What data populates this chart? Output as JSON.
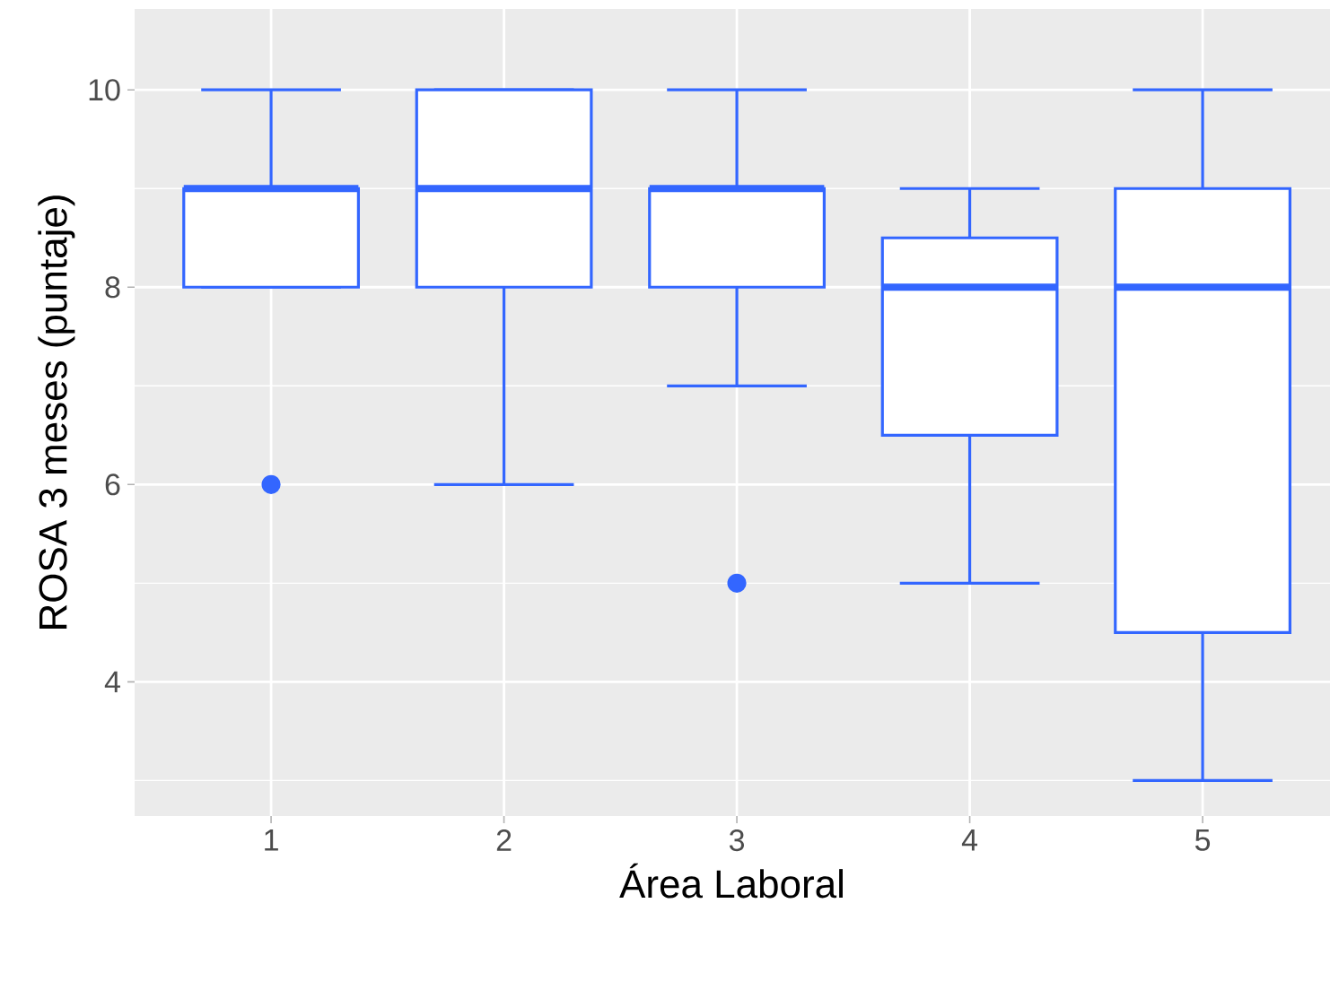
{
  "chart_data": {
    "type": "box",
    "xlabel": "Área Laboral",
    "ylabel": "ROSA 3 meses (puntaje)",
    "categories": [
      "1",
      "2",
      "3",
      "4",
      "5"
    ],
    "color": "#3366ff",
    "boxes": [
      {
        "low": 8,
        "q1": 8,
        "median": 9,
        "q3": 9,
        "high": 10,
        "outliers": [
          6
        ]
      },
      {
        "low": 6,
        "q1": 8,
        "median": 9,
        "q3": 10,
        "high": 10
      },
      {
        "low": 7,
        "q1": 8,
        "median": 9,
        "q3": 9,
        "high": 10,
        "outliers": [
          5
        ]
      },
      {
        "low": 5,
        "q1": 6.5,
        "median": 8,
        "q3": 8.5,
        "high": 9
      },
      {
        "low": 3,
        "q1": 4.5,
        "median": 8,
        "q3": 9,
        "high": 10
      }
    ],
    "ylim": [
      2.64,
      10.82
    ],
    "yticks": [
      4,
      6,
      8,
      10
    ],
    "grid": true
  }
}
